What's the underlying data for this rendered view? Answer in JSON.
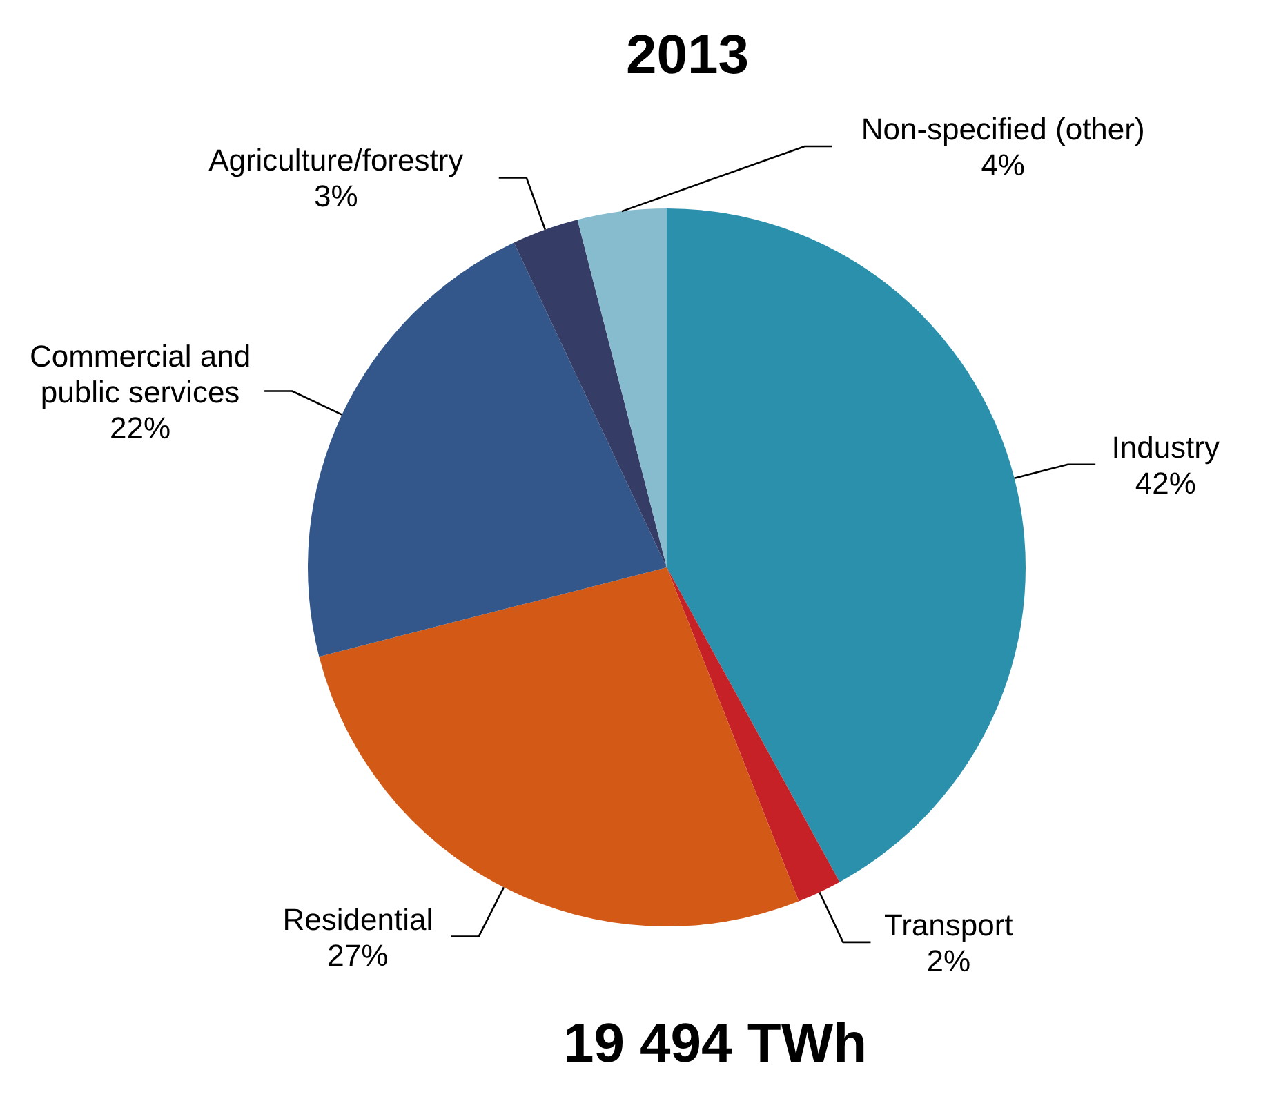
{
  "chart_data": {
    "type": "pie",
    "title": "2013",
    "categories": [
      "Industry",
      "Transport",
      "Residential",
      "Commercial and public services",
      "Agriculture/forestry",
      "Non-specified (other)"
    ],
    "values": [
      42,
      2,
      27,
      22,
      3,
      4
    ],
    "value_labels": [
      "42%",
      "2%",
      "27%",
      "22%",
      "3%",
      "4%"
    ],
    "colors": [
      "#2a90ab",
      "#c62127",
      "#d35a16",
      "#33578a",
      "#353d66",
      "#87bccf"
    ],
    "annotations": [
      "19 494 TWh"
    ],
    "legend": false
  }
}
